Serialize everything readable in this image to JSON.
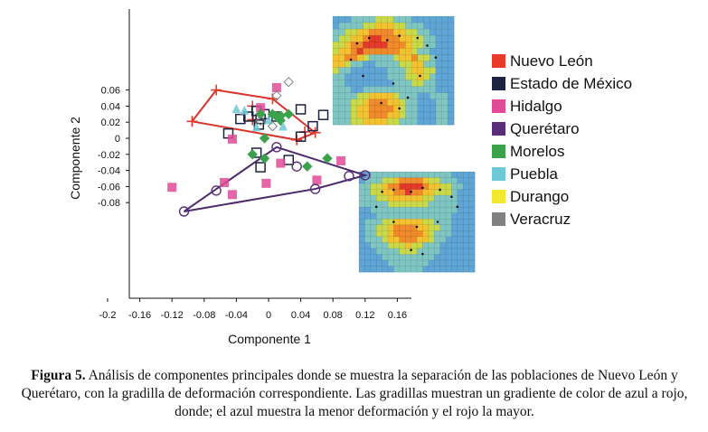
{
  "chart_data": {
    "type": "scatter",
    "xlabel": "Componente 1",
    "ylabel": "Componente 2",
    "xlim": [
      -0.2,
      0.2
    ],
    "ylim": [
      -0.1,
      0.075
    ],
    "x_ticks": [
      "-0.2",
      "-0.16",
      "-0.12",
      "-0.08",
      "-0.04",
      "0",
      "0.04",
      "0.08",
      "0.12",
      "0.16"
    ],
    "x_tick_values": [
      -0.2,
      -0.16,
      -0.12,
      -0.08,
      -0.04,
      0,
      0.04,
      0.08,
      0.12,
      0.16
    ],
    "y_ticks": [
      "0.06",
      "0.04",
      "0.02",
      "0",
      "-0.02",
      "-0.04",
      "-0.06",
      "-0.08"
    ],
    "y_tick_values": [
      0.06,
      0.04,
      0.02,
      0,
      -0.02,
      -0.04,
      -0.06,
      -0.08
    ],
    "series": [
      {
        "name": "Nuevo León",
        "color": "#e8392b",
        "marker": "plus",
        "points": [
          [
            -0.065,
            0.06
          ],
          [
            0.005,
            0.049
          ],
          [
            -0.095,
            0.021
          ],
          [
            -0.02,
            0.023
          ],
          [
            0.045,
            0.008
          ],
          [
            0.058,
            0.007
          ],
          [
            0.035,
            -0.002
          ],
          [
            -0.02,
            0.04
          ]
        ]
      },
      {
        "name": "Estado de México",
        "color": "#1c2340",
        "marker": "square",
        "points": [
          [
            -0.015,
            0.034
          ],
          [
            -0.012,
            0.017
          ],
          [
            -0.01,
            0.024
          ],
          [
            -0.035,
            0.024
          ],
          [
            0.04,
            0.036
          ],
          [
            0.068,
            0.029
          ],
          [
            0.055,
            0.015
          ],
          [
            0.04,
            0.002
          ],
          [
            -0.005,
            0.03
          ],
          [
            0.01,
            0.027
          ],
          [
            -0.05,
            0.006
          ],
          [
            -0.015,
            -0.018
          ],
          [
            -0.01,
            -0.036
          ],
          [
            0.025,
            -0.027
          ],
          [
            -0.025,
            0.027
          ]
        ]
      },
      {
        "name": "Hidalgo",
        "color": "#e04a96",
        "marker": "filled-square",
        "points": [
          [
            -0.12,
            -0.061
          ],
          [
            -0.055,
            -0.055
          ],
          [
            -0.045,
            -0.07
          ],
          [
            -0.003,
            -0.056
          ],
          [
            0.015,
            -0.031
          ],
          [
            0.06,
            -0.052
          ],
          [
            0.09,
            -0.028
          ],
          [
            -0.045,
            -0.001
          ],
          [
            -0.01,
            0.038
          ],
          [
            0.01,
            0.063
          ]
        ]
      },
      {
        "name": "Querétaro",
        "color": "#5a2d7a",
        "marker": "circle",
        "points": [
          [
            -0.105,
            -0.091
          ],
          [
            -0.065,
            -0.065
          ],
          [
            0.058,
            -0.063
          ],
          [
            0.12,
            -0.046
          ],
          [
            0.1,
            -0.047
          ],
          [
            0.035,
            -0.035
          ],
          [
            0.01,
            -0.011
          ]
        ]
      },
      {
        "name": "Morelos",
        "color": "#3aa24a",
        "marker": "diamond",
        "points": [
          [
            0.01,
            0.027
          ],
          [
            0.015,
            0.028
          ],
          [
            0.025,
            0.03
          ],
          [
            -0.01,
            0.03
          ],
          [
            0.015,
            0.022
          ],
          [
            -0.005,
            0.0
          ],
          [
            -0.02,
            -0.02
          ],
          [
            -0.005,
            -0.025
          ],
          [
            0.048,
            -0.035
          ],
          [
            0.073,
            -0.025
          ],
          [
            0.005,
            0.03
          ]
        ]
      },
      {
        "name": "Puebla",
        "color": "#6ec9d6",
        "marker": "triangle",
        "points": [
          [
            -0.04,
            0.036
          ],
          [
            -0.03,
            0.034
          ],
          [
            0.018,
            0.014
          ],
          [
            -0.015,
            0.013
          ],
          [
            0.0,
            0.022
          ]
        ]
      },
      {
        "name": "Durango",
        "color": "#f2e82e",
        "marker": "triangle",
        "points": []
      },
      {
        "name": "Veracruz",
        "color": "#808080",
        "marker": "diamond",
        "points": [
          [
            0.025,
            0.07
          ],
          [
            0.01,
            0.053
          ],
          [
            0.005,
            0.015
          ],
          [
            -0.01,
            0.022
          ]
        ]
      }
    ],
    "hulls": [
      {
        "name": "Nuevo León",
        "color": "#d8342c",
        "points": [
          [
            -0.065,
            0.06
          ],
          [
            0.005,
            0.049
          ],
          [
            0.058,
            0.007
          ],
          [
            0.035,
            -0.002
          ],
          [
            -0.095,
            0.021
          ]
        ]
      },
      {
        "name": "Querétaro",
        "color": "#4b2a6b",
        "points": [
          [
            0.01,
            -0.011
          ],
          [
            0.12,
            -0.046
          ],
          [
            0.058,
            -0.063
          ],
          [
            -0.105,
            -0.091
          ]
        ]
      }
    ],
    "grids": [
      {
        "name": "grid-top",
        "cols": 20,
        "rows": 17,
        "cells": "aaabbbbcccbbbaaaaaa abbbbccdddccbbbaaaaaa bbccddeeeeddccbbaaa bccddeffeeeddccbbaa ccdeeffffeeedccbbaa cddefeeeeeeddcbbaaa ddeedcbbbbcddeccbaa ddcbbaabbbbccddbbaa cbbaaaaaabbbcddccaa bbaaaaaaabbbccdcbaa bbaaaaaaaabbbccbbaa bbbaabbbbbbbbbbbbaa bbbbccddddcbbbaabbb bbbccdeeeddcbbaaabb bbbcddeeeedcbbaaabb bbbcddeeeddcbbaaabb bbbccddddccbbbaaabb"
      },
      {
        "name": "grid-bottom",
        "cols": 20,
        "rows": 17,
        "cells": "aabbbbbbbbbbbbbbaaa abbbccdeeeedccbbbaa bbccdeeffffeddccbba bbccddeefeeddcccbaa bbbccddddddccbbbbaa bbbbbcccccccbbbbbaa aabbbbbbbbbbbbbbbaa aaabbbbbbbbbbbbbaaa abbbccdddddccbbbaaa abbccdeeeeddccbbaaa abbccdeeeeedcbbbaaa abbbcddeeeddcbbaaaa aabbbcccdccbbbaaaaa aaabbbbcccbbbbaaaaa aaaabbbbbbbbbaaaaaa aaaaabbbbbbbaaaaaaa aaaaaabbbbbaaaaaaaa"
      }
    ]
  },
  "caption": {
    "label": "Figura 5.",
    "text": " Análisis de componentes principales donde se muestra la separación de las poblaciones de Nuevo León y Querétaro, con la gradilla de deformación correspondiente. Las gradillas muestran un gradiente de color de azul a rojo, donde; el azul muestra la menor deformación y el rojo la mayor."
  }
}
